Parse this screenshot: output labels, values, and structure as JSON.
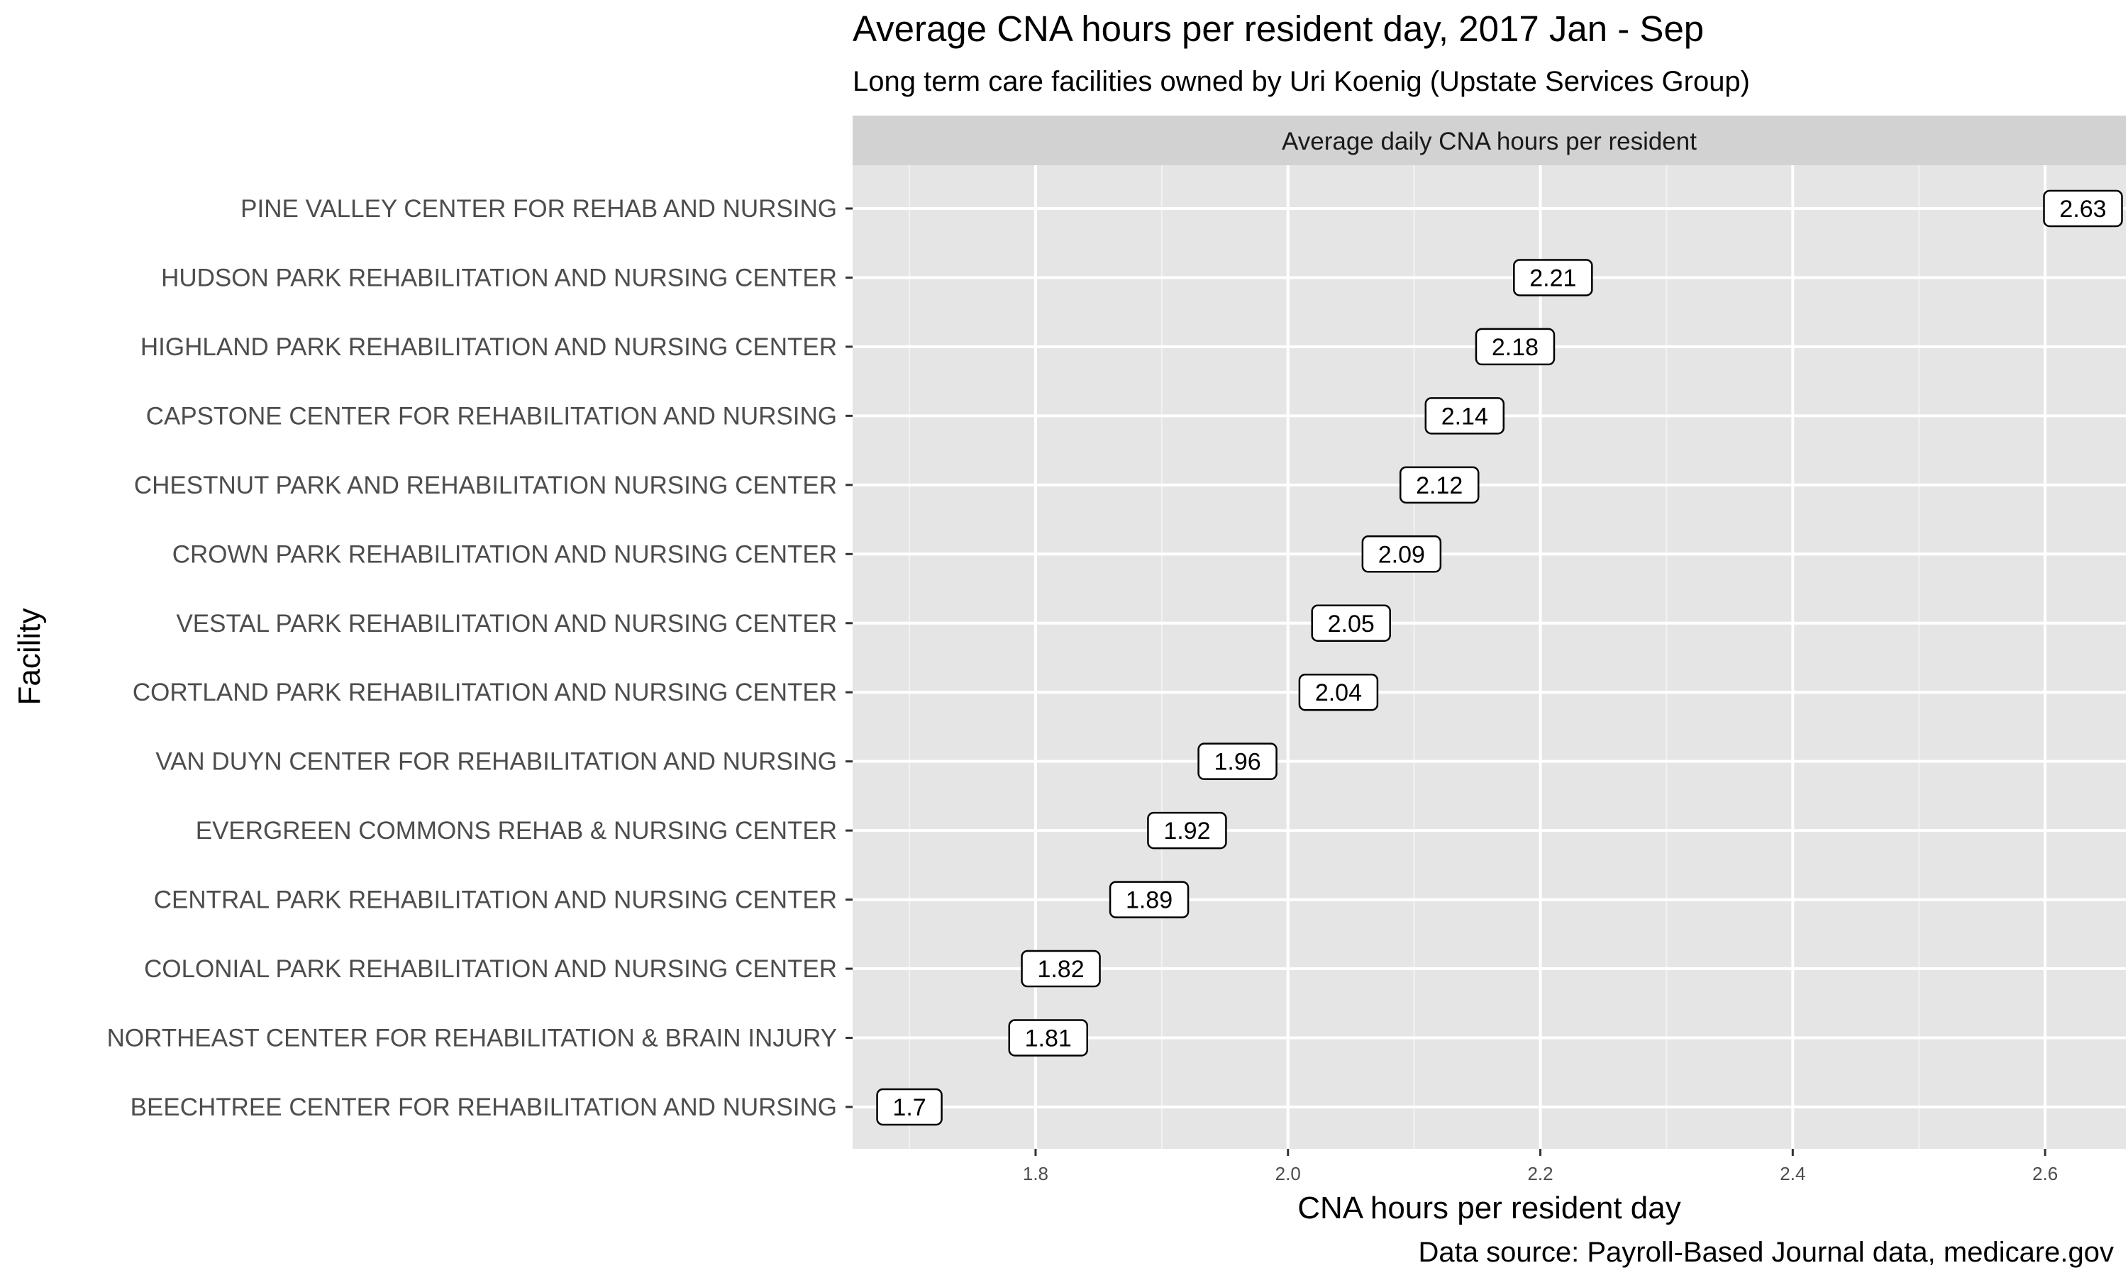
{
  "chart_data": {
    "type": "dot-label",
    "title": "Average CNA hours per resident day, 2017 Jan - Sep",
    "subtitle": "Long term care facilities owned by Uri Koenig (Upstate Services Group)",
    "facet_label": "Average daily CNA hours per resident",
    "xlabel": "CNA hours per resident day",
    "ylabel": "Facility",
    "caption": "Data source: Payroll-Based Journal data, medicare.gov",
    "xlim": [
      1.655,
      2.664
    ],
    "x_ticks": [
      1.8,
      2.0,
      2.2,
      2.4,
      2.6
    ],
    "x_tick_labels": [
      "1.8",
      "2.0",
      "2.2",
      "2.4",
      "2.6"
    ],
    "grid": true,
    "categories": [
      "PINE VALLEY CENTER FOR REHAB AND NURSING",
      "HUDSON PARK REHABILITATION AND NURSING CENTER",
      "HIGHLAND PARK REHABILITATION AND NURSING CENTER",
      "CAPSTONE CENTER FOR REHABILITATION AND NURSING",
      "CHESTNUT PARK AND REHABILITATION NURSING CENTER",
      "CROWN PARK REHABILITATION AND NURSING CENTER",
      "VESTAL PARK REHABILITATION AND NURSING CENTER",
      "CORTLAND PARK REHABILITATION AND NURSING CENTER",
      "VAN DUYN CENTER FOR REHABILITATION AND NURSING",
      "EVERGREEN COMMONS REHAB & NURSING CENTER",
      "CENTRAL PARK REHABILITATION AND NURSING CENTER",
      "COLONIAL PARK REHABILITATION AND NURSING CENTER",
      "NORTHEAST CENTER FOR REHABILITATION & BRAIN INJURY",
      "BEECHTREE CENTER FOR REHABILITATION AND NURSING"
    ],
    "values": [
      2.63,
      2.21,
      2.18,
      2.14,
      2.12,
      2.09,
      2.05,
      2.04,
      1.96,
      1.92,
      1.89,
      1.82,
      1.81,
      1.7
    ],
    "value_labels": [
      "2.63",
      "2.21",
      "2.18",
      "2.14",
      "2.12",
      "2.09",
      "2.05",
      "2.04",
      "1.96",
      "1.92",
      "1.89",
      "1.82",
      "1.81",
      "1.7"
    ],
    "colors": {
      "panel_background": "#e5e5e5",
      "grid_major": "#ffffff",
      "strip_background": "#d2d2d2",
      "label_border": "#000000",
      "label_fill": "#ffffff"
    }
  }
}
